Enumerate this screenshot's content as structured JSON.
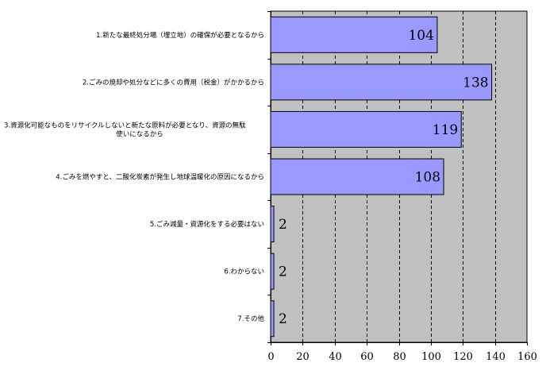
{
  "chart_data": {
    "type": "bar",
    "orientation": "horizontal",
    "categories": [
      [
        "1.新たな最終処分場（埋立地）の確保が必要となるから"
      ],
      [
        "2.ごみの焼却や処分などに多くの費用（税金）がかかるから"
      ],
      [
        "3.資源化可能なものをリサイクルしないと新たな原料が必要となり、資源の無駄",
        "使いになるから"
      ],
      [
        "4.ごみを燃やすと、二酸化炭素が発生し地球温暖化の原因になるから"
      ],
      [
        "5.ごみ減量・資源化をする必要はない"
      ],
      [
        "6.わからない"
      ],
      [
        "7.その他"
      ]
    ],
    "values": [
      104,
      138,
      119,
      108,
      2,
      2,
      2
    ],
    "xlim": [
      0,
      160
    ],
    "ticks": [
      "0",
      "20",
      "40",
      "60",
      "80",
      "100",
      "120",
      "140",
      "160"
    ],
    "grid": true,
    "title": "",
    "xlabel": "",
    "ylabel": "",
    "colors": {
      "bar": "#9999ff",
      "bar_stroke": "#000000",
      "plot_bg": "#c0c0c0",
      "grid": "#000000"
    }
  }
}
